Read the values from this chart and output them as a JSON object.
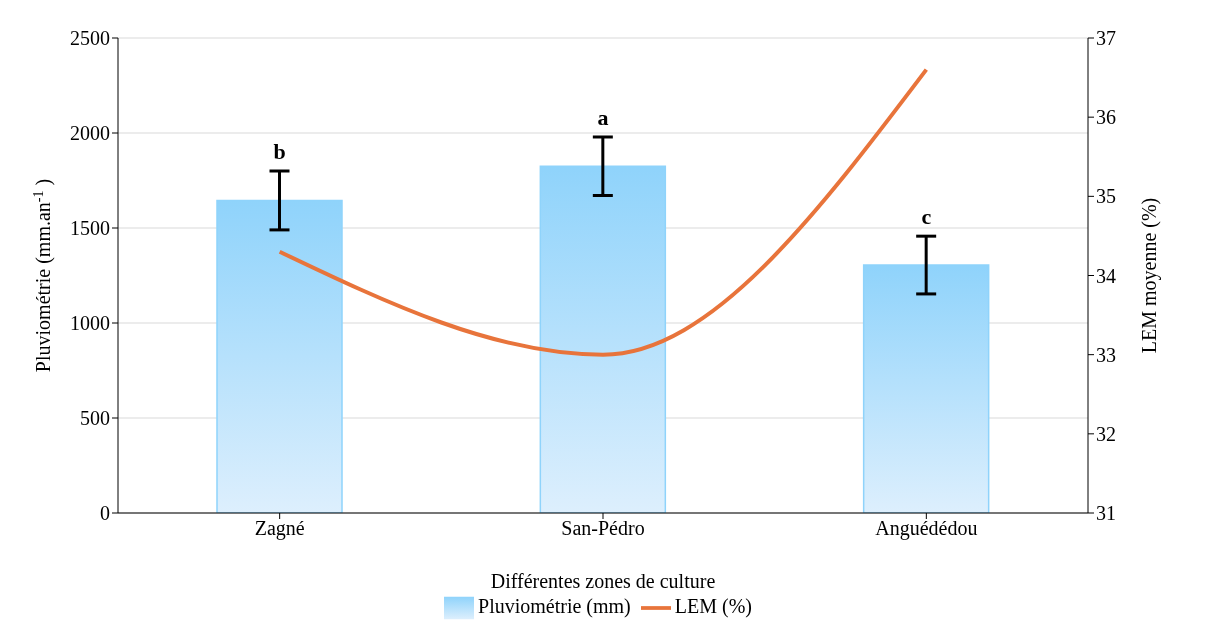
{
  "chart_data": {
    "type": "bar",
    "xlabel": "Différentes zones de culture",
    "ylabel": "Pluviométrie (mm.an$^{-1}$)",
    "y2label": "LEM moyenne (%)",
    "categories": [
      "Zagné",
      "San-Pédro",
      "Anguédédou"
    ],
    "series": [
      {
        "name": "Pluviométrie (mm)",
        "color": "#8fd3fb",
        "values": [
          1645,
          1825,
          1305
        ],
        "errors": [
          155,
          154,
          152
        ]
      },
      {
        "name": "LEM (%)",
        "type": "line",
        "color": "#e8743b",
        "axis": "y2",
        "values": [
          34.3,
          33.0,
          36.6
        ],
        "marker": "none"
      }
    ],
    "annotations": [
      {
        "text": "b",
        "x": "Zagné",
        "y": 1800
      },
      {
        "text": "a",
        "x": "San-Pédro",
        "y": 1980
      },
      {
        "text": "c",
        "x": "Anguédédou",
        "y": 1460
      }
    ],
    "ylim": [
      0,
      2500
    ],
    "yticks": [
      0,
      500,
      1000,
      1500,
      2000,
      2500
    ],
    "y2lim": [
      31,
      37
    ],
    "y2ticks": [
      31,
      32,
      33,
      34,
      35,
      36,
      37
    ],
    "grid": "y",
    "legend": "bottom"
  }
}
